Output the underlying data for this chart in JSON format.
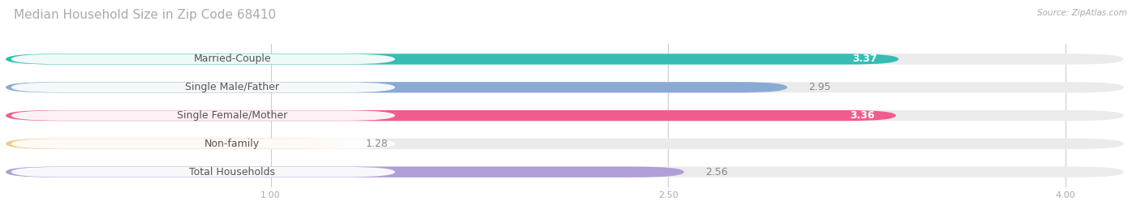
{
  "title": "Median Household Size in Zip Code 68410",
  "source": "Source: ZipAtlas.com",
  "categories": [
    "Married-Couple",
    "Single Male/Father",
    "Single Female/Mother",
    "Non-family",
    "Total Households"
  ],
  "values": [
    3.37,
    2.95,
    3.36,
    1.28,
    2.56
  ],
  "bar_colors": [
    "#35bdb5",
    "#8aaad6",
    "#ef5d8f",
    "#f5c98a",
    "#b09ed6"
  ],
  "bar_bg_colors": [
    "#ebebeb",
    "#ebebeb",
    "#ebebeb",
    "#ebebeb",
    "#ebebeb"
  ],
  "value_inside": [
    true,
    false,
    true,
    false,
    false
  ],
  "xlim": [
    0,
    4.22
  ],
  "xticks": [
    1.0,
    2.5,
    4.0
  ],
  "title_color": "#aaaaaa",
  "source_color": "#aaaaaa",
  "label_text_color": "#555555",
  "value_color_inside": "#ffffff",
  "value_color_outside": "#888888",
  "title_fontsize": 11,
  "label_fontsize": 9,
  "value_fontsize": 9,
  "bar_height": 0.38,
  "bar_gap": 0.16,
  "background_color": "#ffffff",
  "grid_color": "#cccccc"
}
